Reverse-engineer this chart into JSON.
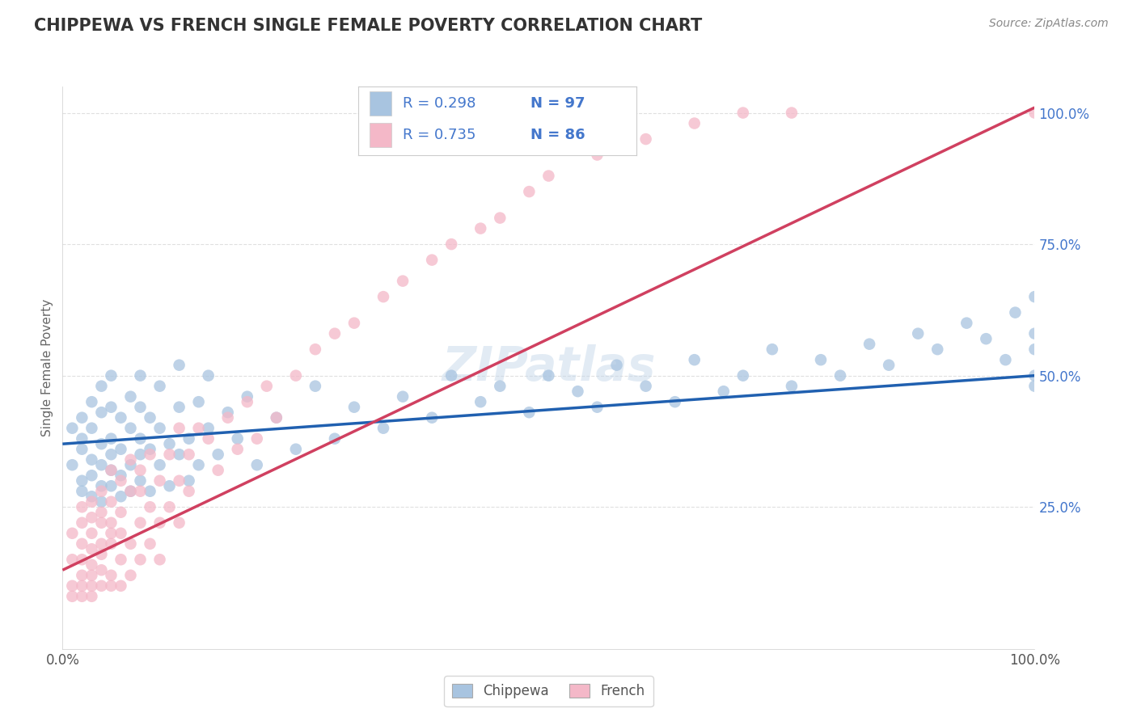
{
  "title": "CHIPPEWA VS FRENCH SINGLE FEMALE POVERTY CORRELATION CHART",
  "source_text": "Source: ZipAtlas.com",
  "ylabel": "Single Female Poverty",
  "watermark": "ZIPatlas",
  "chippewa_color": "#a8c4e0",
  "french_color": "#f4b8c8",
  "chippewa_line_color": "#2060b0",
  "french_line_color": "#d04060",
  "chippewa_R": 0.298,
  "chippewa_N": 97,
  "french_R": 0.735,
  "french_N": 86,
  "background_color": "#ffffff",
  "grid_color": "#dddddd",
  "title_color": "#333333",
  "legend_text_color": "#4477cc",
  "chippewa_line_intercept": 0.37,
  "chippewa_line_slope": 0.13,
  "french_line_intercept": 0.13,
  "french_line_slope": 0.88,
  "chippewa_points_x": [
    0.01,
    0.01,
    0.02,
    0.02,
    0.02,
    0.02,
    0.02,
    0.03,
    0.03,
    0.03,
    0.03,
    0.03,
    0.04,
    0.04,
    0.04,
    0.04,
    0.04,
    0.04,
    0.05,
    0.05,
    0.05,
    0.05,
    0.05,
    0.05,
    0.06,
    0.06,
    0.06,
    0.06,
    0.07,
    0.07,
    0.07,
    0.07,
    0.08,
    0.08,
    0.08,
    0.08,
    0.08,
    0.09,
    0.09,
    0.09,
    0.1,
    0.1,
    0.1,
    0.11,
    0.11,
    0.12,
    0.12,
    0.12,
    0.13,
    0.13,
    0.14,
    0.14,
    0.15,
    0.15,
    0.16,
    0.17,
    0.18,
    0.19,
    0.2,
    0.22,
    0.24,
    0.26,
    0.28,
    0.3,
    0.33,
    0.35,
    0.38,
    0.4,
    0.43,
    0.45,
    0.48,
    0.5,
    0.53,
    0.55,
    0.57,
    0.6,
    0.63,
    0.65,
    0.68,
    0.7,
    0.73,
    0.75,
    0.78,
    0.8,
    0.83,
    0.85,
    0.88,
    0.9,
    0.93,
    0.95,
    0.97,
    0.98,
    1.0,
    1.0,
    1.0,
    1.0,
    1.0
  ],
  "chippewa_points_y": [
    0.33,
    0.4,
    0.28,
    0.36,
    0.42,
    0.3,
    0.38,
    0.27,
    0.34,
    0.4,
    0.45,
    0.31,
    0.29,
    0.37,
    0.43,
    0.33,
    0.48,
    0.26,
    0.32,
    0.38,
    0.44,
    0.29,
    0.5,
    0.35,
    0.31,
    0.42,
    0.36,
    0.27,
    0.4,
    0.33,
    0.46,
    0.28,
    0.35,
    0.44,
    0.38,
    0.3,
    0.5,
    0.36,
    0.42,
    0.28,
    0.4,
    0.33,
    0.48,
    0.37,
    0.29,
    0.44,
    0.35,
    0.52,
    0.38,
    0.3,
    0.45,
    0.33,
    0.4,
    0.5,
    0.35,
    0.43,
    0.38,
    0.46,
    0.33,
    0.42,
    0.36,
    0.48,
    0.38,
    0.44,
    0.4,
    0.46,
    0.42,
    0.5,
    0.45,
    0.48,
    0.43,
    0.5,
    0.47,
    0.44,
    0.52,
    0.48,
    0.45,
    0.53,
    0.47,
    0.5,
    0.55,
    0.48,
    0.53,
    0.5,
    0.56,
    0.52,
    0.58,
    0.55,
    0.6,
    0.57,
    0.53,
    0.62,
    0.5,
    0.58,
    0.55,
    0.65,
    0.48
  ],
  "french_points_x": [
    0.01,
    0.01,
    0.01,
    0.01,
    0.02,
    0.02,
    0.02,
    0.02,
    0.02,
    0.02,
    0.02,
    0.03,
    0.03,
    0.03,
    0.03,
    0.03,
    0.03,
    0.03,
    0.03,
    0.04,
    0.04,
    0.04,
    0.04,
    0.04,
    0.04,
    0.04,
    0.05,
    0.05,
    0.05,
    0.05,
    0.05,
    0.05,
    0.05,
    0.06,
    0.06,
    0.06,
    0.06,
    0.06,
    0.07,
    0.07,
    0.07,
    0.07,
    0.08,
    0.08,
    0.08,
    0.08,
    0.09,
    0.09,
    0.09,
    0.1,
    0.1,
    0.1,
    0.11,
    0.11,
    0.12,
    0.12,
    0.12,
    0.13,
    0.13,
    0.14,
    0.15,
    0.16,
    0.17,
    0.18,
    0.19,
    0.2,
    0.21,
    0.22,
    0.24,
    0.26,
    0.28,
    0.3,
    0.33,
    0.35,
    0.38,
    0.4,
    0.43,
    0.45,
    0.48,
    0.5,
    0.55,
    0.6,
    0.65,
    0.7,
    0.75,
    1.0
  ],
  "french_points_y": [
    0.1,
    0.15,
    0.2,
    0.08,
    0.12,
    0.18,
    0.22,
    0.08,
    0.15,
    0.25,
    0.1,
    0.14,
    0.2,
    0.26,
    0.1,
    0.17,
    0.23,
    0.08,
    0.12,
    0.16,
    0.22,
    0.28,
    0.1,
    0.18,
    0.24,
    0.13,
    0.2,
    0.26,
    0.32,
    0.12,
    0.18,
    0.22,
    0.1,
    0.24,
    0.3,
    0.15,
    0.2,
    0.1,
    0.28,
    0.34,
    0.18,
    0.12,
    0.32,
    0.22,
    0.15,
    0.28,
    0.25,
    0.35,
    0.18,
    0.3,
    0.22,
    0.15,
    0.35,
    0.25,
    0.3,
    0.4,
    0.22,
    0.35,
    0.28,
    0.4,
    0.38,
    0.32,
    0.42,
    0.36,
    0.45,
    0.38,
    0.48,
    0.42,
    0.5,
    0.55,
    0.58,
    0.6,
    0.65,
    0.68,
    0.72,
    0.75,
    0.78,
    0.8,
    0.85,
    0.88,
    0.92,
    0.95,
    0.98,
    1.0,
    1.0,
    1.0
  ]
}
